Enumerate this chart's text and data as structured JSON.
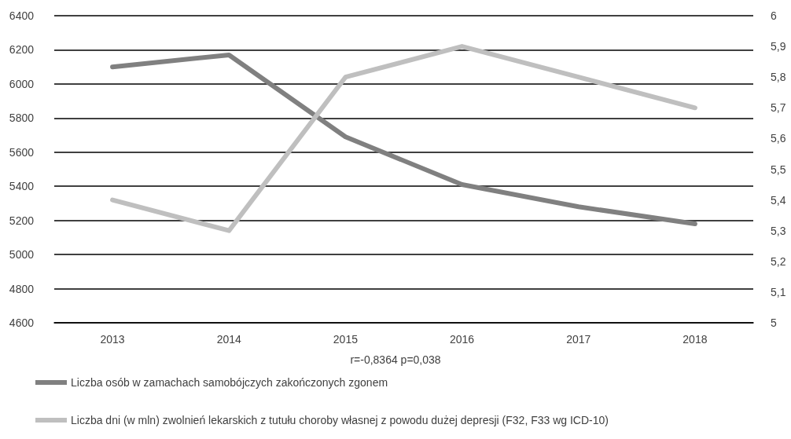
{
  "chart_data": {
    "type": "line",
    "categories": [
      "2013",
      "2014",
      "2015",
      "2016",
      "2017",
      "2018"
    ],
    "series": [
      {
        "name": "Liczba osób w zamachach samobójczych zakończonych zgonem",
        "color": "#808080",
        "values": [
          6100,
          6170,
          5690,
          5410,
          5280,
          5180
        ]
      },
      {
        "name": "Liczba dni (w mln) zwolnień lekarskich z tutułu choroby własnej z powodu dużej depresji (F32, F33 wg ICD-10)",
        "color": "#bfbfbf",
        "axis": "y2",
        "values": [
          5.4,
          5.3,
          5.8,
          5.9,
          5.8,
          5.7
        ]
      }
    ],
    "ylim": [
      4600,
      6400
    ],
    "yticks": [
      4600,
      4800,
      5000,
      5200,
      5400,
      5600,
      5800,
      6000,
      6200,
      6400
    ],
    "y2lim": [
      5,
      6
    ],
    "y2ticks": [
      5,
      {
        "value": 5.1,
        "label": "5,1"
      },
      {
        "value": 5.2,
        "label": "5,2"
      },
      {
        "value": 5.3,
        "label": "5,3"
      },
      {
        "value": 5.4,
        "label": "5,4"
      },
      {
        "value": 5.5,
        "label": "5,5"
      },
      {
        "value": 5.6,
        "label": "5,6"
      },
      {
        "value": 5.7,
        "label": "5,7"
      },
      {
        "value": 5.8,
        "label": "5,8"
      },
      {
        "value": 5.9,
        "label": "5,9"
      },
      6
    ],
    "annotations": [
      "r=-0,8364 p=0,038"
    ],
    "grid": "y",
    "legend": "bottom",
    "marker": "none",
    "line_style": "solid"
  }
}
